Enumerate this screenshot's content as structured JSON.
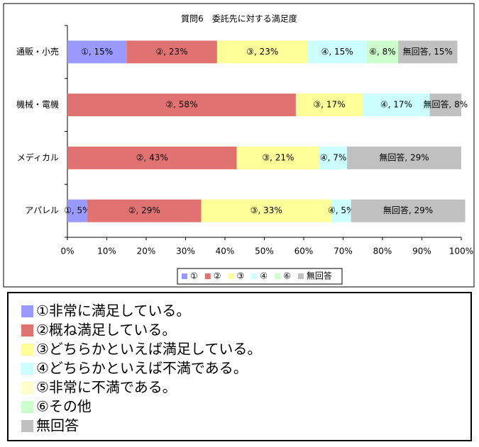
{
  "chart_data": {
    "type": "stacked-barh",
    "title": "質問6　委託先に対する満足度",
    "categories": [
      "通販・小売",
      "機械・電機",
      "メディカル",
      "アパレル"
    ],
    "series": [
      {
        "name": "①",
        "color": "#9999ff",
        "values": [
          15,
          null,
          null,
          5
        ],
        "value_labels": [
          "①, 15%",
          null,
          null,
          "①, 5%"
        ]
      },
      {
        "name": "②",
        "color": "#e07272",
        "values": [
          23,
          58,
          43,
          29
        ],
        "value_labels": [
          "②, 23%",
          "②, 58%",
          "②, 43%",
          "②, 29%"
        ]
      },
      {
        "name": "③",
        "color": "#ffff99",
        "values": [
          23,
          17,
          21,
          33
        ],
        "value_labels": [
          "③, 23%",
          "③, 17%",
          "③, 21%",
          "③, 33%"
        ]
      },
      {
        "name": "④",
        "color": "#ccffff",
        "values": [
          15,
          17,
          7,
          5
        ],
        "value_labels": [
          "④, 15%",
          "④, 17%",
          "④, 7%",
          "④, 5%"
        ]
      },
      {
        "name": "⑥",
        "color": "#ccffcc",
        "values": [
          8,
          null,
          null,
          null
        ],
        "value_labels": [
          "⑥, 8%",
          null,
          null,
          null
        ]
      },
      {
        "name": "無回答",
        "color": "#c0c0c0",
        "values": [
          15,
          8,
          29,
          29
        ],
        "value_labels": [
          "無回答, 15%",
          "無回答, 8%",
          "無回答, 29%",
          "無回答, 29%"
        ]
      }
    ],
    "xlim": [
      0,
      100
    ],
    "xticks": [
      {
        "value": 0,
        "label": "0%"
      },
      {
        "value": 10,
        "label": "10%"
      },
      {
        "value": 20,
        "label": "20%"
      },
      {
        "value": 30,
        "label": "30%"
      },
      {
        "value": 40,
        "label": "40%"
      },
      {
        "value": 50,
        "label": "50%"
      },
      {
        "value": 60,
        "label": "60%"
      },
      {
        "value": 70,
        "label": "70%"
      },
      {
        "value": 80,
        "label": "80%"
      },
      {
        "value": 90,
        "label": "90%"
      },
      {
        "value": 100,
        "label": "100%"
      }
    ],
    "legend": "bottom"
  },
  "answer_key": {
    "items": [
      {
        "text": "①非常に満足している。",
        "color": "#9999ff"
      },
      {
        "text": "②概ね満足している。",
        "color": "#e07272"
      },
      {
        "text": "③どちらかといえば満足している。",
        "color": "#ffff99"
      },
      {
        "text": "④どちらかといえば不満である。",
        "color": "#ccffff"
      },
      {
        "text": "⑤非常に不満である。",
        "color": "#ffffcc"
      },
      {
        "text": "⑥その他",
        "color": "#ccffcc"
      },
      {
        "text": "無回答",
        "color": "#c0c0c0"
      }
    ]
  }
}
